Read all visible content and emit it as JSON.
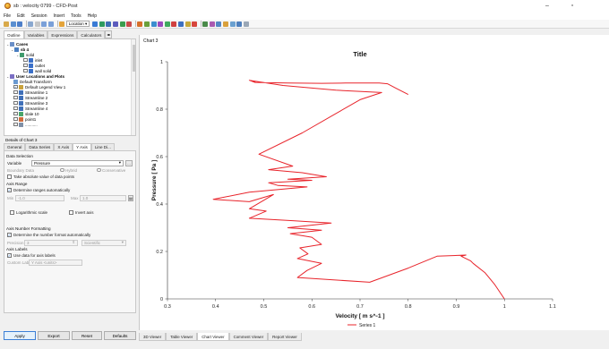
{
  "window": {
    "title": "sb : velocity 0799 - CFD-Post"
  },
  "menu": [
    "File",
    "Edit",
    "Session",
    "Insert",
    "Tools",
    "Help"
  ],
  "toolbar": {
    "location_label": "Location"
  },
  "left_tabs": [
    "Outline",
    "Variables",
    "Expressions",
    "Calculators"
  ],
  "tree": {
    "cases": "Cases",
    "case": "sb 4",
    "domain": "solid",
    "inlet": "inlet",
    "outlet": "outlet",
    "wall": "wall solid",
    "user_locations": "User Locations and Plots",
    "default_transform": "Default Transform",
    "default_legend": "Default Legend View 1",
    "streamlines": [
      "Streamline 1",
      "Streamline 2",
      "Streamline 3",
      "Streamline 4"
    ],
    "slice": "slale 10",
    "point": "point1",
    "partial": "..........."
  },
  "details": {
    "title": "Details of Chart 3",
    "tabs": [
      "General",
      "Data Series",
      "X Axis",
      "Y Axis",
      "Line Di..."
    ],
    "data_selection": "Data Selection",
    "variable_label": "Variable",
    "variable_value": "Pressure",
    "boundary_label": "Boundary Data",
    "hybrid": "Hybrid",
    "conservative": "Conservative",
    "abs_value": "Take absolute value of data points",
    "axis_range": "Axis Range",
    "determine_ranges": "Determine ranges automatically",
    "min_label": "Min",
    "min_value": "-1.0",
    "max_label": "Max",
    "max_value": "1.0",
    "log_scale": "Logarithmic scale",
    "invert_axis": "Invert axis",
    "number_format": "Axis Number Formatting",
    "determine_number": "Determine the number format automatically",
    "precision_label": "Precision",
    "precision_value": "3",
    "precision_type": "Scientific",
    "axis_labels": "Axis Labels",
    "use_data": "Use data for axis labels",
    "custom_label_label": "Custom Label",
    "custom_label_value": "Y Axis <units>"
  },
  "buttons": {
    "apply": "Apply",
    "export": "Export",
    "reset": "Reset",
    "defaults": "Defaults"
  },
  "chart_panel": {
    "label": "Chart 3"
  },
  "view_tabs": [
    "3D Viewer",
    "Table Viewer",
    "Chart Viewer",
    "Comment Viewer",
    "Report Viewer"
  ],
  "chart_data": {
    "type": "line",
    "title": "Title",
    "xlabel": "Velocity [ m s^-1 ]",
    "ylabel": "Pressure [ Pa ]",
    "xlim": [
      0.3,
      1.1
    ],
    "ylim": [
      0,
      1.0
    ],
    "xticks": [
      "0.3",
      "0.4",
      "0.5",
      "0.6",
      "0.7",
      "0.8",
      "0.9",
      "1",
      "1.1"
    ],
    "yticks": [
      "0",
      "0.2",
      "0.4",
      "0.6",
      "0.8",
      "1"
    ],
    "legend": "bottom",
    "series": [
      {
        "name": "Series 1",
        "color": "#e8242b",
        "points": [
          [
            0.8,
            0.862
          ],
          [
            0.775,
            0.888
          ],
          [
            0.757,
            0.907
          ],
          [
            0.74,
            0.91
          ],
          [
            0.72,
            0.91
          ],
          [
            0.67,
            0.91
          ],
          [
            0.62,
            0.909
          ],
          [
            0.55,
            0.91
          ],
          [
            0.482,
            0.913
          ],
          [
            0.47,
            0.922
          ],
          [
            0.54,
            0.9
          ],
          [
            0.65,
            0.88
          ],
          [
            0.745,
            0.87
          ],
          [
            0.7,
            0.84
          ],
          [
            0.58,
            0.7
          ],
          [
            0.49,
            0.61
          ],
          [
            0.56,
            0.56
          ],
          [
            0.51,
            0.545
          ],
          [
            0.58,
            0.532
          ],
          [
            0.63,
            0.515
          ],
          [
            0.55,
            0.505
          ],
          [
            0.6,
            0.5
          ],
          [
            0.51,
            0.49
          ],
          [
            0.53,
            0.478
          ],
          [
            0.59,
            0.472
          ],
          [
            0.47,
            0.45
          ],
          [
            0.395,
            0.42
          ],
          [
            0.47,
            0.41
          ],
          [
            0.52,
            0.44
          ],
          [
            0.47,
            0.38
          ],
          [
            0.505,
            0.37
          ],
          [
            0.47,
            0.34
          ],
          [
            0.56,
            0.33
          ],
          [
            0.64,
            0.32
          ],
          [
            0.55,
            0.3
          ],
          [
            0.62,
            0.29
          ],
          [
            0.555,
            0.275
          ],
          [
            0.6,
            0.26
          ],
          [
            0.62,
            0.23
          ],
          [
            0.575,
            0.215
          ],
          [
            0.592,
            0.19
          ],
          [
            0.57,
            0.17
          ],
          [
            0.62,
            0.15
          ],
          [
            0.59,
            0.12
          ],
          [
            0.57,
            0.09
          ],
          [
            0.72,
            0.07
          ],
          [
            0.8,
            0.13
          ],
          [
            0.86,
            0.18
          ],
          [
            0.92,
            0.185
          ],
          [
            0.91,
            0.18
          ],
          [
            0.93,
            0.16
          ],
          [
            0.935,
            0.15
          ],
          [
            0.96,
            0.11
          ],
          [
            0.98,
            0.06
          ],
          [
            1.0,
            0.0
          ]
        ]
      }
    ]
  }
}
